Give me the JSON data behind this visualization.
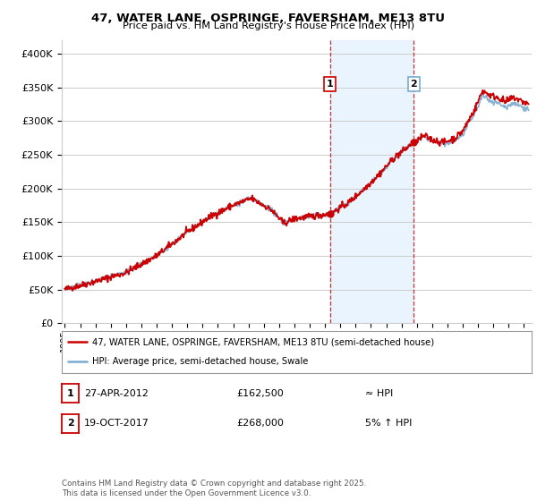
{
  "title1": "47, WATER LANE, OSPRINGE, FAVERSHAM, ME13 8TU",
  "title2": "Price paid vs. HM Land Registry's House Price Index (HPI)",
  "ylabel_ticks": [
    "£0",
    "£50K",
    "£100K",
    "£150K",
    "£200K",
    "£250K",
    "£300K",
    "£350K",
    "£400K"
  ],
  "ytick_vals": [
    0,
    50000,
    100000,
    150000,
    200000,
    250000,
    300000,
    350000,
    400000
  ],
  "ylim": [
    0,
    420000
  ],
  "xlim_start": 1994.8,
  "xlim_end": 2025.5,
  "price_line_color": "#cc0000",
  "hpi_line_color": "#7aaad0",
  "hpi_fill_color": "#ddeeff",
  "grid_color": "#cccccc",
  "vline1_x": 2012.32,
  "vline2_x": 2017.8,
  "annotation1_label": "1",
  "annotation2_label": "2",
  "legend_entry1": "47, WATER LANE, OSPRINGE, FAVERSHAM, ME13 8TU (semi-detached house)",
  "legend_entry2": "HPI: Average price, semi-detached house, Swale",
  "table_row1": [
    "1",
    "27-APR-2012",
    "£162,500",
    "≈ HPI"
  ],
  "table_row2": [
    "2",
    "19-OCT-2017",
    "£268,000",
    "5% ↑ HPI"
  ],
  "footnote": "Contains HM Land Registry data © Crown copyright and database right 2025.\nThis data is licensed under the Open Government Licence v3.0.",
  "xtick_years": [
    1995,
    1996,
    1997,
    1998,
    1999,
    2000,
    2001,
    2002,
    2003,
    2004,
    2005,
    2006,
    2007,
    2008,
    2009,
    2010,
    2011,
    2012,
    2013,
    2014,
    2015,
    2016,
    2017,
    2018,
    2019,
    2020,
    2021,
    2022,
    2023,
    2024,
    2025
  ],
  "fig_width": 6.0,
  "fig_height": 5.6
}
